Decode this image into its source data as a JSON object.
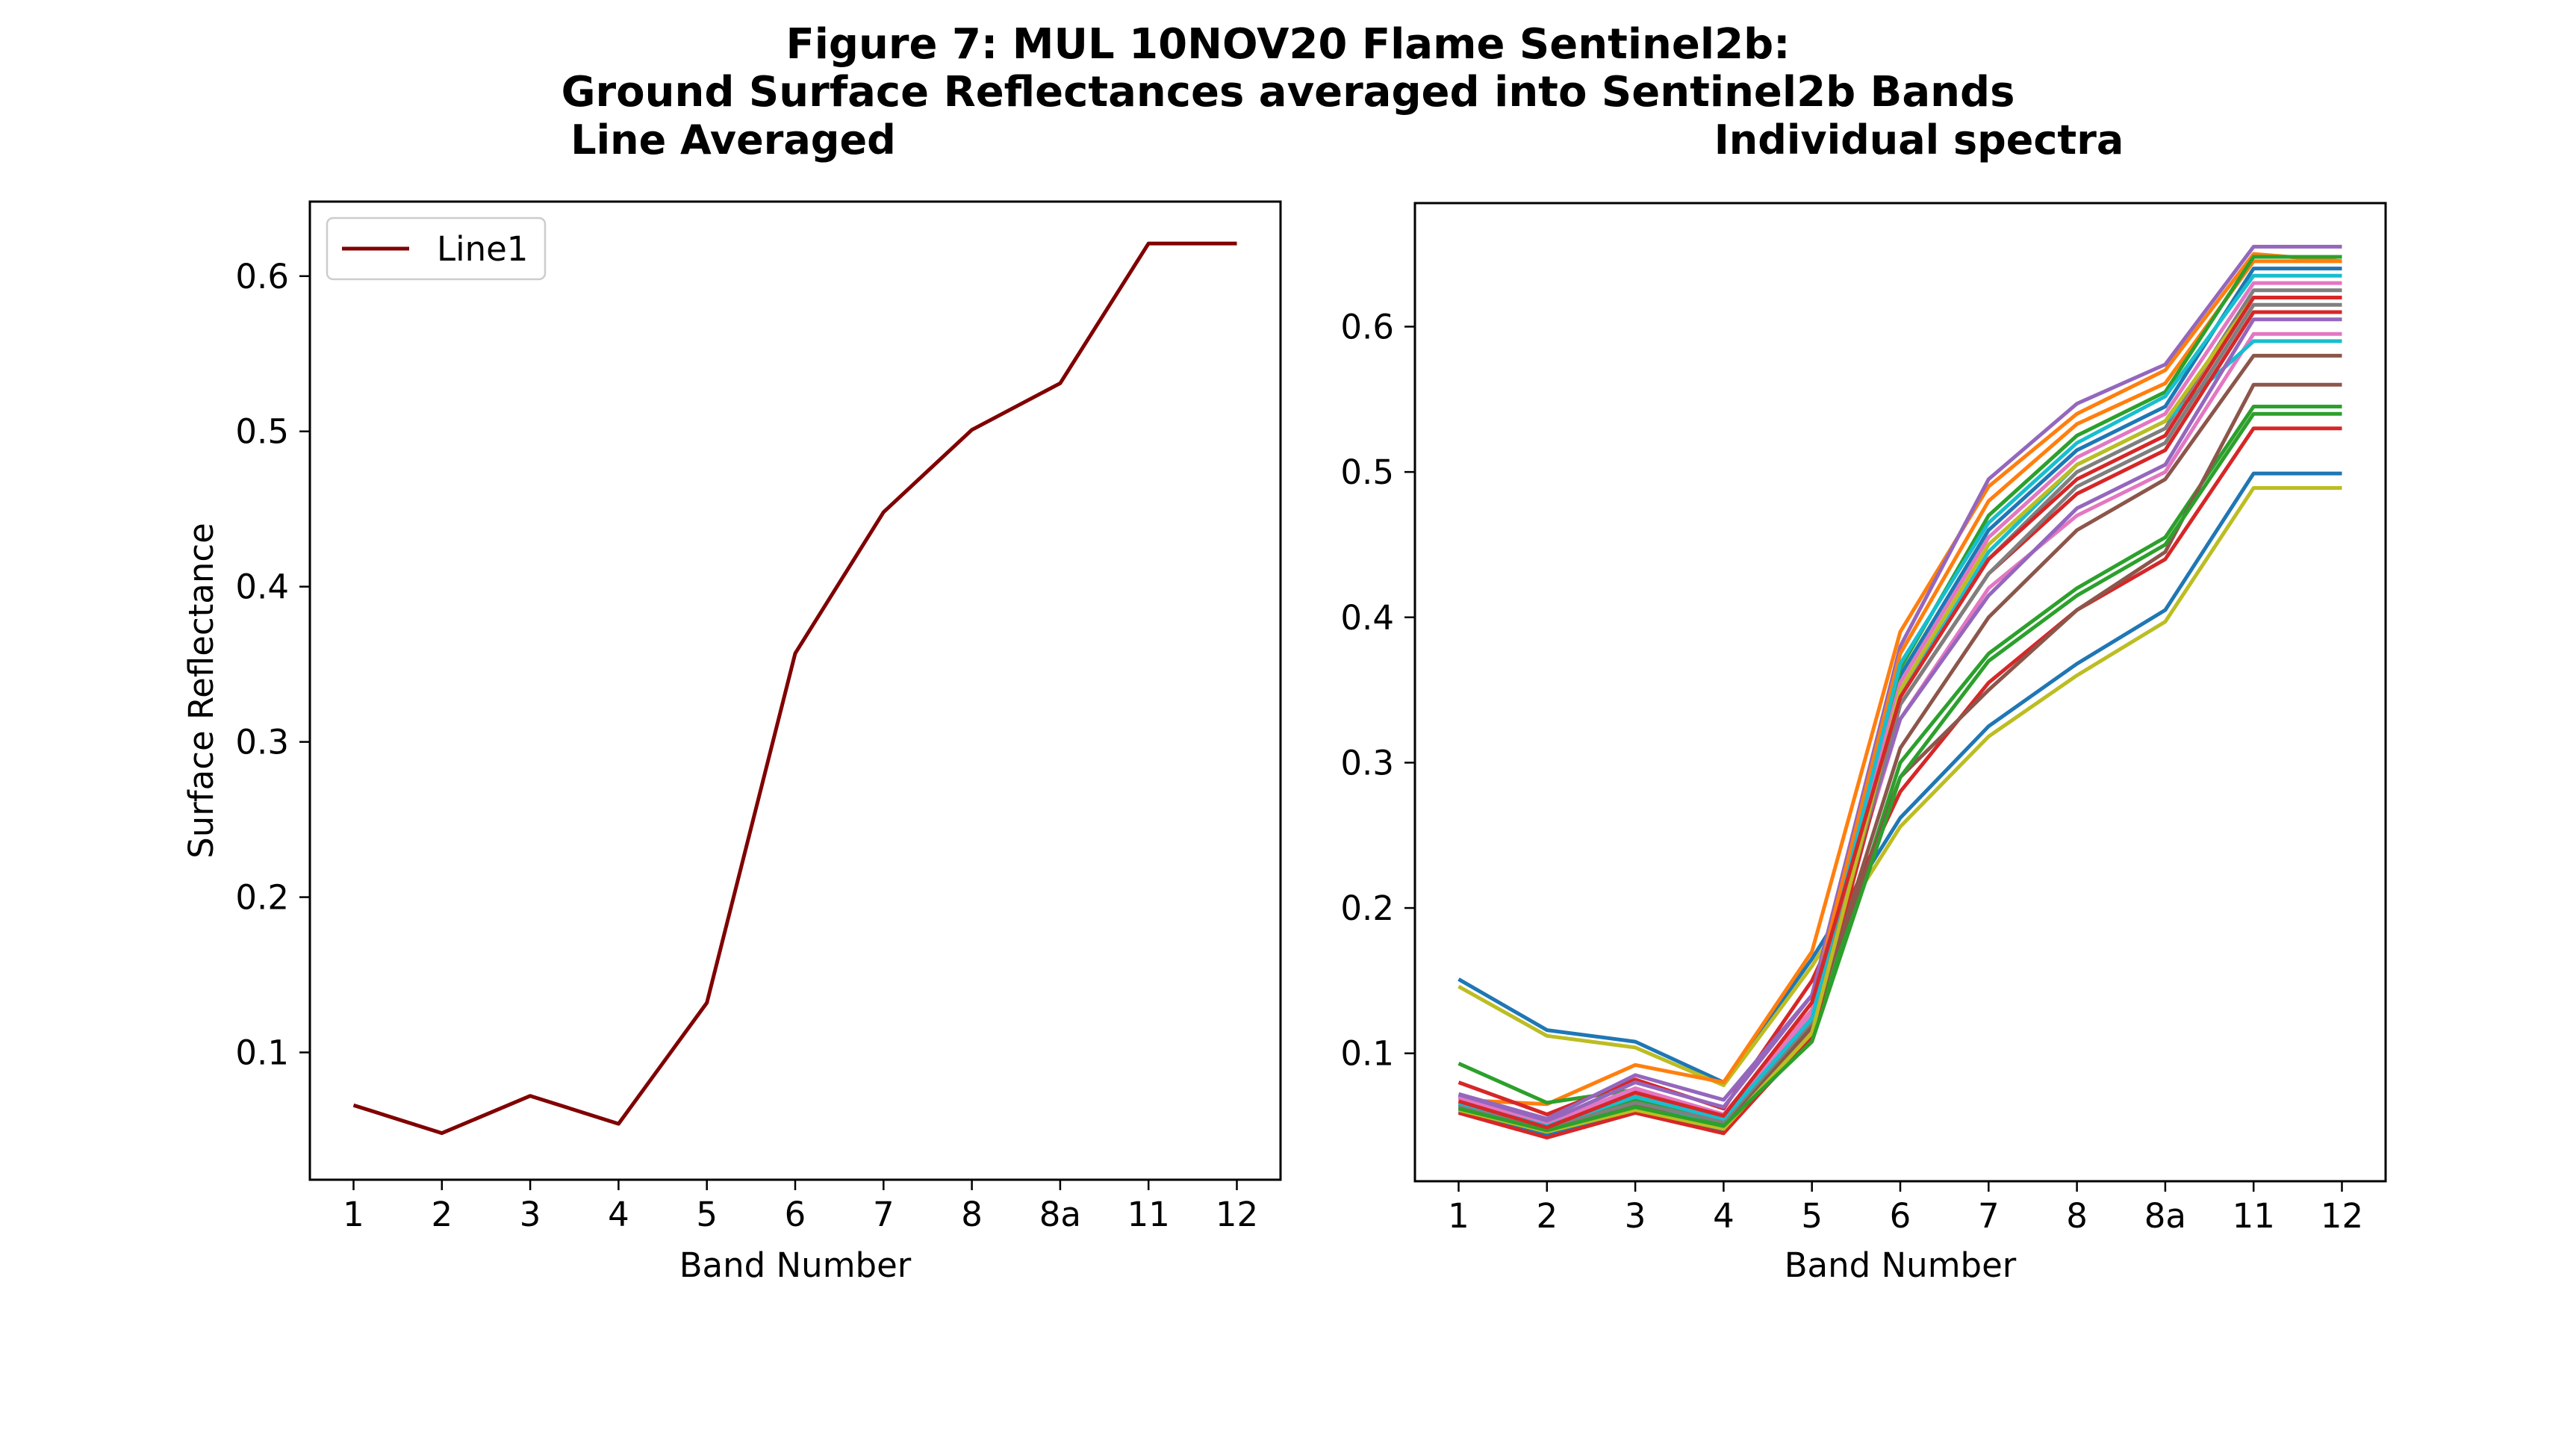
{
  "figure": {
    "title_lines": [
      "Figure 7: MUL 10NOV20 Flame Sentinel2b:",
      "Ground Surface Reflectances averaged into Sentinel2b Bands"
    ]
  },
  "chart_data": [
    {
      "type": "line",
      "title": "Line Averaged",
      "xlabel": "Band Number",
      "ylabel": "Surface Reflectance",
      "categories": [
        "1",
        "2",
        "3",
        "4",
        "5",
        "6",
        "7",
        "8",
        "8a",
        "11",
        "12"
      ],
      "ylim": [
        0.018,
        0.648
      ],
      "yticks": [
        0.1,
        0.2,
        0.3,
        0.4,
        0.5,
        0.6
      ],
      "ytick_labels": [
        "0.1",
        "0.2",
        "0.3",
        "0.4",
        "0.5",
        "0.6"
      ],
      "legend": "top-left",
      "grid": false,
      "series": [
        {
          "name": "Line1",
          "color": "#800000",
          "values": [
            0.066,
            0.048,
            0.072,
            0.054,
            0.132,
            0.357,
            0.448,
            0.501,
            0.531,
            0.621,
            0.621
          ]
        }
      ]
    },
    {
      "type": "line",
      "title": "Individual spectra",
      "xlabel": "Band Number",
      "ylabel": "",
      "categories": [
        "1",
        "2",
        "3",
        "4",
        "5",
        "6",
        "7",
        "8",
        "8a",
        "11",
        "12"
      ],
      "ylim": [
        0.012,
        0.685
      ],
      "yticks": [
        0.1,
        0.2,
        0.3,
        0.4,
        0.5,
        0.6
      ],
      "ytick_labels": [
        "0.1",
        "0.2",
        "0.3",
        "0.4",
        "0.5",
        "0.6"
      ],
      "grid": false,
      "series": [
        {
          "color": "#1f77b4",
          "values": [
            0.151,
            0.116,
            0.108,
            0.08,
            0.165,
            0.262,
            0.325,
            0.368,
            0.405,
            0.499,
            0.499
          ]
        },
        {
          "color": "#bcbd22",
          "values": [
            0.146,
            0.112,
            0.104,
            0.078,
            0.16,
            0.256,
            0.318,
            0.36,
            0.397,
            0.489,
            0.489
          ]
        },
        {
          "color": "#ff7f0e",
          "values": [
            0.068,
            0.065,
            0.092,
            0.08,
            0.17,
            0.39,
            0.49,
            0.54,
            0.57,
            0.65,
            0.645
          ]
        },
        {
          "color": "#2ca02c",
          "values": [
            0.093,
            0.066,
            0.075,
            0.054,
            0.11,
            0.3,
            0.375,
            0.42,
            0.455,
            0.545,
            0.545
          ]
        },
        {
          "color": "#d62728",
          "values": [
            0.08,
            0.058,
            0.082,
            0.062,
            0.15,
            0.28,
            0.355,
            0.405,
            0.44,
            0.53,
            0.53
          ]
        },
        {
          "color": "#9467bd",
          "values": [
            0.072,
            0.055,
            0.085,
            0.068,
            0.14,
            0.38,
            0.495,
            0.547,
            0.574,
            0.655,
            0.655
          ]
        },
        {
          "color": "#8c564b",
          "values": [
            0.064,
            0.048,
            0.062,
            0.05,
            0.125,
            0.29,
            0.35,
            0.405,
            0.445,
            0.56,
            0.56
          ]
        },
        {
          "color": "#e377c2",
          "values": [
            0.07,
            0.052,
            0.076,
            0.058,
            0.13,
            0.33,
            0.42,
            0.47,
            0.5,
            0.595,
            0.595
          ]
        },
        {
          "color": "#7f7f7f",
          "values": [
            0.066,
            0.05,
            0.07,
            0.055,
            0.125,
            0.35,
            0.44,
            0.5,
            0.53,
            0.625,
            0.625
          ]
        },
        {
          "color": "#17becf",
          "values": [
            0.062,
            0.046,
            0.064,
            0.052,
            0.118,
            0.345,
            0.445,
            0.505,
            0.535,
            0.59,
            0.59
          ]
        },
        {
          "color": "#1f77b4",
          "values": [
            0.06,
            0.044,
            0.06,
            0.047,
            0.11,
            0.36,
            0.46,
            0.515,
            0.545,
            0.64,
            0.64
          ]
        },
        {
          "color": "#ff7f0e",
          "values": [
            0.067,
            0.05,
            0.072,
            0.056,
            0.135,
            0.375,
            0.48,
            0.533,
            0.561,
            0.645,
            0.645
          ]
        },
        {
          "color": "#2ca02c",
          "values": [
            0.065,
            0.048,
            0.068,
            0.052,
            0.12,
            0.365,
            0.47,
            0.525,
            0.555,
            0.648,
            0.648
          ]
        },
        {
          "color": "#d62728",
          "values": [
            0.059,
            0.042,
            0.059,
            0.045,
            0.112,
            0.34,
            0.43,
            0.485,
            0.515,
            0.61,
            0.61
          ]
        },
        {
          "color": "#9467bd",
          "values": [
            0.071,
            0.053,
            0.08,
            0.063,
            0.14,
            0.33,
            0.415,
            0.475,
            0.505,
            0.605,
            0.605
          ]
        },
        {
          "color": "#8c564b",
          "values": [
            0.063,
            0.047,
            0.064,
            0.049,
            0.118,
            0.31,
            0.4,
            0.46,
            0.495,
            0.58,
            0.58
          ]
        },
        {
          "color": "#e377c2",
          "values": [
            0.069,
            0.051,
            0.074,
            0.057,
            0.128,
            0.355,
            0.455,
            0.51,
            0.54,
            0.63,
            0.63
          ]
        },
        {
          "color": "#7f7f7f",
          "values": [
            0.064,
            0.049,
            0.066,
            0.053,
            0.122,
            0.34,
            0.43,
            0.49,
            0.52,
            0.615,
            0.615
          ]
        },
        {
          "color": "#bcbd22",
          "values": [
            0.061,
            0.046,
            0.061,
            0.048,
            0.114,
            0.35,
            0.45,
            0.505,
            0.535,
            0.62,
            0.62
          ]
        },
        {
          "color": "#17becf",
          "values": [
            0.066,
            0.05,
            0.07,
            0.055,
            0.124,
            0.368,
            0.465,
            0.52,
            0.552,
            0.635,
            0.635
          ]
        },
        {
          "color": "#2ca02c",
          "values": [
            0.062,
            0.047,
            0.063,
            0.05,
            0.108,
            0.29,
            0.37,
            0.415,
            0.45,
            0.54,
            0.54
          ]
        },
        {
          "color": "#d62728",
          "values": [
            0.067,
            0.049,
            0.073,
            0.057,
            0.135,
            0.345,
            0.44,
            0.495,
            0.525,
            0.62,
            0.62
          ]
        }
      ]
    }
  ]
}
